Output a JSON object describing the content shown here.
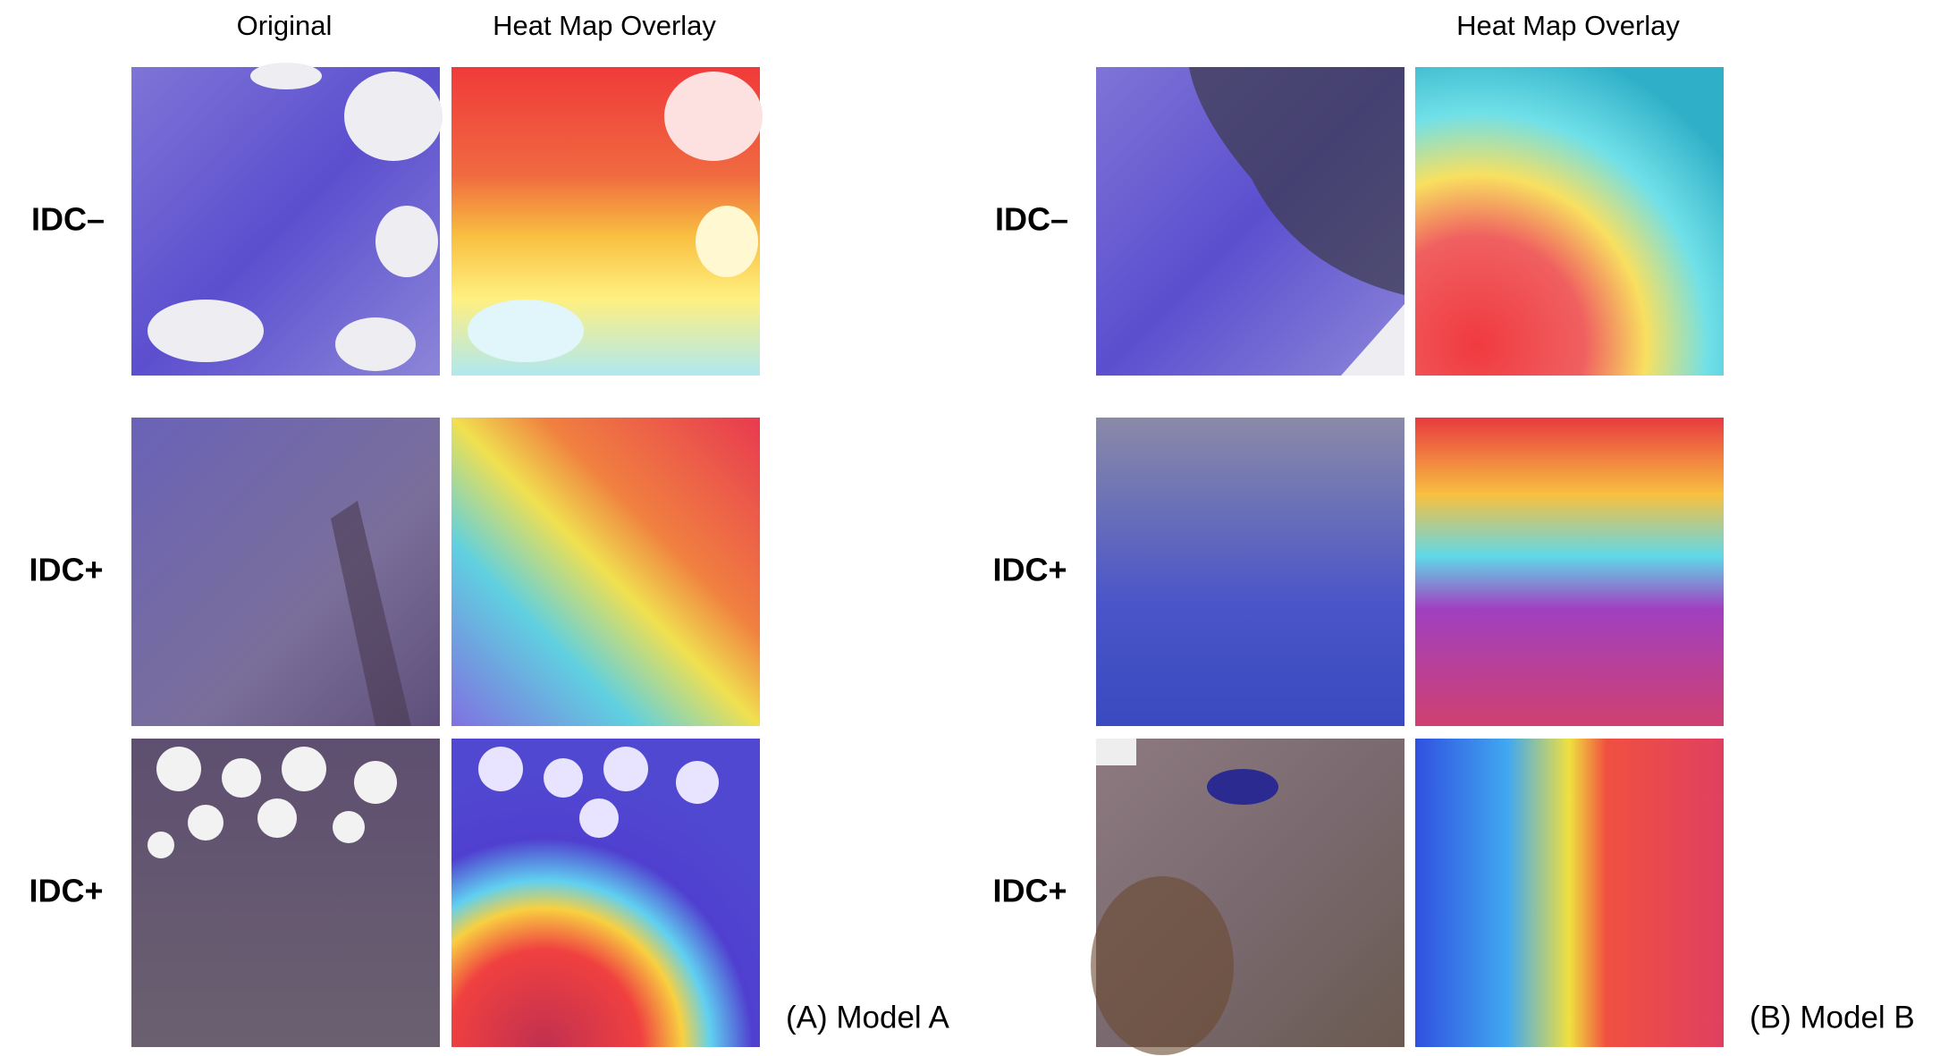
{
  "panels": [
    {
      "column_headers": [
        "Original",
        "Heat Map Overlay"
      ],
      "rows": [
        {
          "label": "IDC–"
        },
        {
          "label": "IDC+"
        },
        {
          "label": "IDC+"
        }
      ],
      "caption": "(A) Model A"
    },
    {
      "column_headers": [
        "Heat Map Overlay"
      ],
      "rows": [
        {
          "label": "IDC–"
        },
        {
          "label": "IDC+"
        },
        {
          "label": "IDC+"
        }
      ],
      "caption": "(B) Model B"
    }
  ]
}
